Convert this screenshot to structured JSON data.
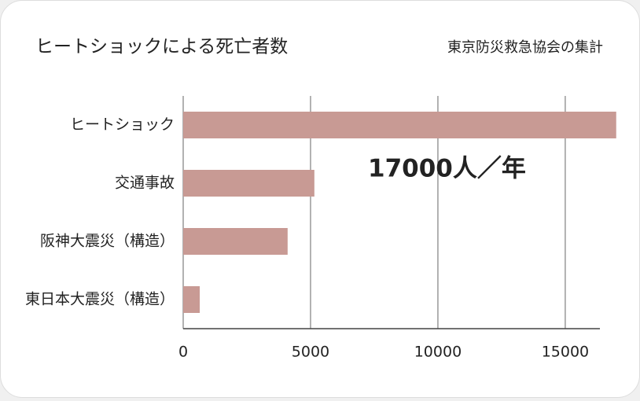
{
  "chart_data": {
    "type": "bar",
    "orientation": "horizontal",
    "title": "ヒートショックによる死亡者数",
    "source": "東京防災救急協会の集計",
    "annotation": "17000人／年",
    "categories": [
      "ヒートショック",
      "交通事故",
      "阪神大震災（構造）",
      "東日本大震災（構造）"
    ],
    "values": [
      17000,
      5150,
      4100,
      650
    ],
    "color": "#c89a94",
    "xlim": [
      0,
      16360
    ],
    "xticks": [
      0,
      5000,
      10000,
      15000
    ],
    "grid": true
  }
}
